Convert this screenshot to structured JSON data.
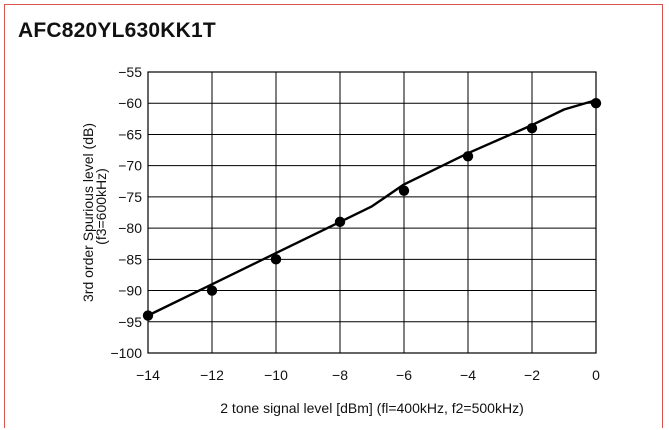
{
  "chart_data": {
    "type": "line",
    "title": "AFC820YL630KK1T",
    "xlabel": "2 tone signal level [dBm] (fl=400kHz, f2=500kHz)",
    "ylabel_line1": "3rd order Spurious level (dB)",
    "ylabel_line2": "(f3=600kHz)",
    "xlim": [
      -14,
      0
    ],
    "ylim": [
      -100,
      -55
    ],
    "x_ticks": [
      -14,
      -12,
      -10,
      -8,
      -6,
      -4,
      -2,
      0
    ],
    "x_tick_labels": [
      "−14",
      "−12",
      "−10",
      "−8",
      "−6",
      "−4",
      "−2",
      "0"
    ],
    "y_ticks": [
      -55,
      -60,
      -65,
      -70,
      -75,
      -80,
      -85,
      -90,
      -95,
      -100
    ],
    "y_tick_labels": [
      "−55",
      "−60",
      "−65",
      "−70",
      "−75",
      "−80",
      "−85",
      "−90",
      "−95",
      "−100"
    ],
    "grid": true,
    "series": [
      {
        "type": "scatter",
        "color": "#000000",
        "x": [
          -14,
          -12,
          -10,
          -8,
          -6,
          -4,
          -2,
          0
        ],
        "y": [
          -94,
          -90,
          -85,
          -79,
          -74,
          -68.5,
          -64,
          -60
        ]
      },
      {
        "type": "line",
        "color": "#000000",
        "x": [
          -14,
          -12,
          -10,
          -8,
          -7,
          -6,
          -4,
          -2,
          -1,
          0
        ],
        "y": [
          -94,
          -89,
          -84,
          -79,
          -76.5,
          -73,
          -68,
          -63.5,
          -61,
          -59.5
        ]
      }
    ]
  }
}
